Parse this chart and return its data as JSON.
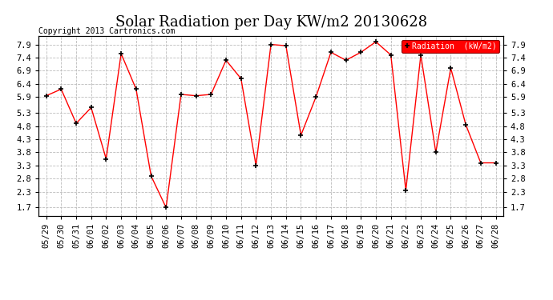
{
  "title": "Solar Radiation per Day KW/m2 20130628",
  "copyright": "Copyright 2013 Cartronics.com",
  "legend_label": "Radiation  (kW/m2)",
  "dates": [
    "05/29",
    "05/30",
    "05/31",
    "06/01",
    "06/02",
    "06/03",
    "06/04",
    "06/05",
    "06/06",
    "06/07",
    "06/08",
    "06/09",
    "06/10",
    "06/11",
    "06/12",
    "06/13",
    "06/14",
    "06/15",
    "06/16",
    "06/17",
    "06/18",
    "06/19",
    "06/20",
    "06/21",
    "06/22",
    "06/23",
    "06/24",
    "06/25",
    "06/26",
    "06/27",
    "06/28"
  ],
  "values": [
    5.95,
    6.2,
    4.9,
    5.5,
    3.55,
    7.55,
    6.2,
    2.9,
    1.7,
    6.0,
    5.95,
    6.0,
    7.3,
    6.6,
    3.3,
    7.9,
    7.85,
    4.45,
    5.9,
    7.6,
    7.3,
    7.6,
    8.0,
    7.5,
    2.35,
    7.5,
    3.8,
    7.0,
    4.85,
    3.4,
    3.4
  ],
  "line_color": "red",
  "marker_color": "black",
  "background_color": "#ffffff",
  "plot_bg_color": "#ffffff",
  "grid_color": "#bbbbbb",
  "title_fontsize": 13,
  "copyright_fontsize": 7,
  "tick_fontsize": 7.5,
  "yticks": [
    1.7,
    2.3,
    2.8,
    3.3,
    3.8,
    4.3,
    4.8,
    5.3,
    5.9,
    6.4,
    6.9,
    7.4,
    7.9
  ],
  "ylim": [
    1.38,
    8.22
  ],
  "legend_bg": "red",
  "legend_text_color": "white"
}
